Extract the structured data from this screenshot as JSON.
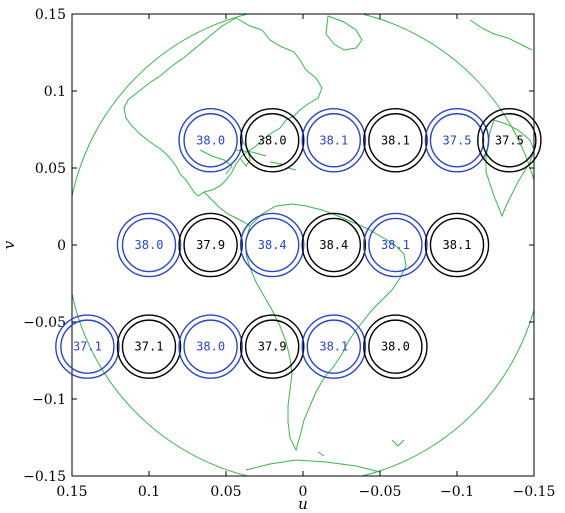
{
  "chart_data": {
    "type": "scatter",
    "title": "",
    "xlabel": "u",
    "ylabel": "v",
    "xlim": [
      0.15,
      -0.15
    ],
    "ylim": [
      -0.15,
      0.15
    ],
    "x_ticks": [
      {
        "value": 0.15,
        "label": "0.15"
      },
      {
        "value": 0.1,
        "label": "0.1"
      },
      {
        "value": 0.05,
        "label": "0.05"
      },
      {
        "value": 0,
        "label": "0"
      },
      {
        "value": -0.05,
        "label": "−0.05"
      },
      {
        "value": -0.1,
        "label": "−0.1"
      },
      {
        "value": -0.15,
        "label": "−0.15"
      }
    ],
    "y_ticks": [
      {
        "value": 0.15,
        "label": "0.15"
      },
      {
        "value": 0.1,
        "label": "0.1"
      },
      {
        "value": 0.05,
        "label": "0.05"
      },
      {
        "value": 0,
        "label": "0"
      },
      {
        "value": -0.05,
        "label": "−0.05"
      },
      {
        "value": -0.1,
        "label": "−0.1"
      },
      {
        "value": -0.15,
        "label": "−0.15"
      }
    ],
    "grid": false,
    "background": "earth disk with continent outlines",
    "colors": {
      "blue": "#2a44c8",
      "black": "#000000",
      "earth_outline": "#3ab54a"
    },
    "points": [
      {
        "u": 0.06,
        "v": 0.068,
        "label": "38.0",
        "color": "blue"
      },
      {
        "u": 0.02,
        "v": 0.068,
        "label": "38.0",
        "color": "black"
      },
      {
        "u": -0.02,
        "v": 0.068,
        "label": "38.1",
        "color": "blue"
      },
      {
        "u": -0.06,
        "v": 0.068,
        "label": "38.1",
        "color": "black"
      },
      {
        "u": -0.1,
        "v": 0.068,
        "label": "37.5",
        "color": "blue"
      },
      {
        "u": -0.134,
        "v": 0.068,
        "label": "37.5",
        "color": "black"
      },
      {
        "u": 0.1,
        "v": 0.0,
        "label": "38.0",
        "color": "blue"
      },
      {
        "u": 0.06,
        "v": 0.0,
        "label": "37.9",
        "color": "black"
      },
      {
        "u": 0.02,
        "v": 0.0,
        "label": "38.4",
        "color": "blue"
      },
      {
        "u": -0.02,
        "v": 0.0,
        "label": "38.4",
        "color": "black"
      },
      {
        "u": -0.06,
        "v": 0.0,
        "label": "38.1",
        "color": "blue"
      },
      {
        "u": -0.1,
        "v": 0.0,
        "label": "38.1",
        "color": "black"
      },
      {
        "u": 0.14,
        "v": -0.066,
        "label": "37.1",
        "color": "blue"
      },
      {
        "u": 0.1,
        "v": -0.066,
        "label": "37.1",
        "color": "black"
      },
      {
        "u": 0.06,
        "v": -0.066,
        "label": "38.0",
        "color": "blue"
      },
      {
        "u": 0.02,
        "v": -0.066,
        "label": "37.9",
        "color": "black"
      },
      {
        "u": -0.02,
        "v": -0.066,
        "label": "38.1",
        "color": "blue"
      },
      {
        "u": -0.06,
        "v": -0.066,
        "label": "38.0",
        "color": "black"
      }
    ]
  }
}
